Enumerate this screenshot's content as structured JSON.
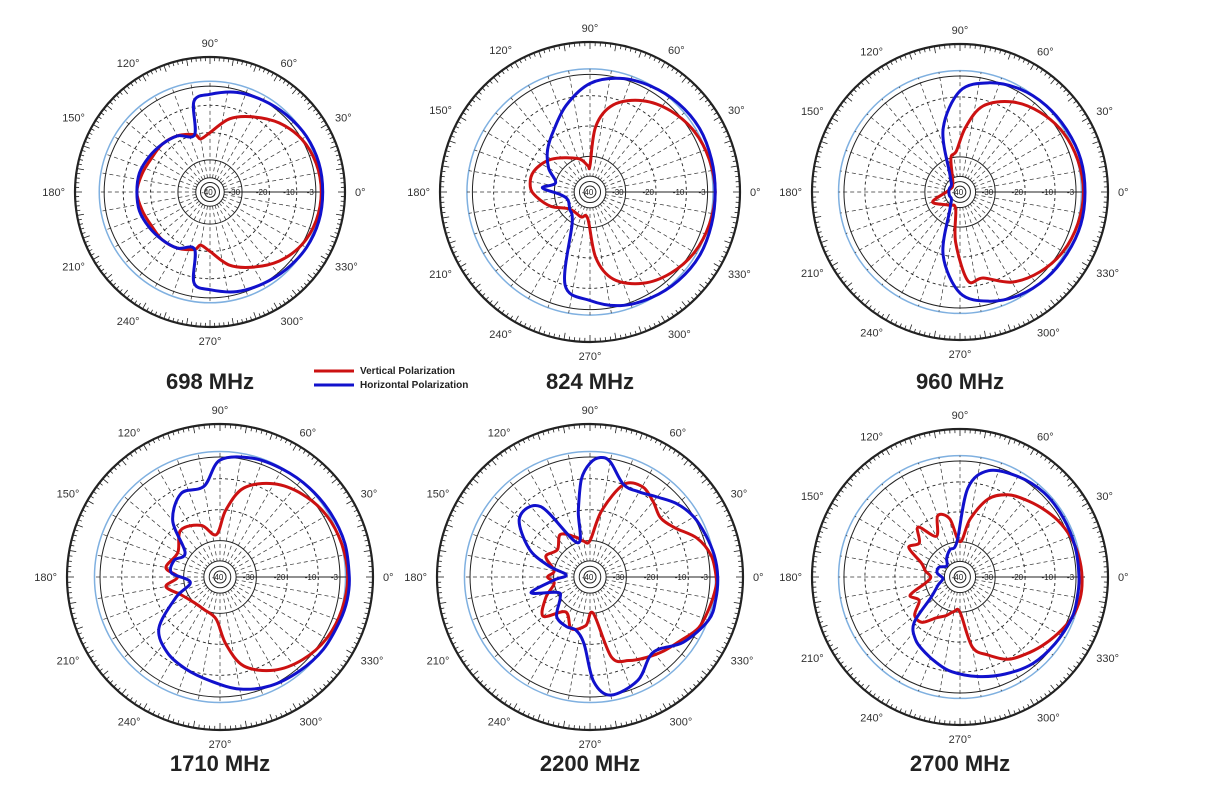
{
  "chart_data": [
    {
      "type": "polar",
      "title": "698 MHz",
      "angle_labels": [
        "0°",
        "30°",
        "60°",
        "90°",
        "120°",
        "150°",
        "180°",
        "210°",
        "240°",
        "270°",
        "300°",
        "330°"
      ],
      "ring_labels": [
        "-3",
        "-10",
        "-20",
        "-30",
        "-40"
      ],
      "rlim": [
        -40,
        0
      ],
      "series": [
        {
          "name": "Vertical Polarization",
          "color": "#cc1111",
          "angles": [
            0,
            15,
            30,
            45,
            60,
            75,
            90,
            100,
            105,
            120,
            135,
            150,
            165,
            180,
            195,
            210,
            225,
            240,
            255,
            260,
            270,
            285,
            300,
            315,
            330,
            345
          ],
          "values": [
            -1,
            -1.5,
            -3,
            -6,
            -10,
            -14,
            -20,
            -22,
            -20,
            -18,
            -17,
            -17,
            -16,
            -15,
            -16,
            -17,
            -17,
            -18,
            -20,
            -22,
            -20,
            -14,
            -10,
            -6,
            -3,
            -1.5
          ]
        },
        {
          "name": "Horizontal Polarization",
          "color": "#1111cc",
          "angles": [
            0,
            15,
            30,
            45,
            60,
            75,
            90,
            100,
            105,
            120,
            135,
            150,
            165,
            180,
            195,
            210,
            225,
            240,
            255,
            260,
            270,
            285,
            300,
            315,
            330,
            345
          ],
          "values": [
            -0.5,
            -0.5,
            -1,
            -2,
            -3,
            -4,
            -6,
            -8,
            -20,
            -18,
            -17,
            -16,
            -15,
            -15,
            -15,
            -16,
            -17,
            -18,
            -20,
            -8,
            -6,
            -4,
            -3,
            -2,
            -1,
            -0.5
          ]
        }
      ]
    },
    {
      "type": "polar",
      "title": "824 MHz",
      "angle_labels": [
        "0°",
        "30°",
        "60°",
        "90°",
        "120°",
        "150°",
        "180°",
        "210°",
        "240°",
        "270°",
        "300°",
        "330°"
      ],
      "ring_labels": [
        "-3",
        "-10",
        "-20",
        "-30",
        "-40"
      ],
      "rlim": [
        -40,
        0
      ],
      "series": [
        {
          "name": "Vertical Polarization",
          "color": "#cc1111",
          "angles": [
            0,
            15,
            30,
            45,
            60,
            75,
            85,
            90,
            95,
            110,
            140,
            160,
            175,
            185,
            200,
            220,
            250,
            265,
            275,
            285,
            300,
            315,
            330,
            345
          ],
          "values": [
            -0.5,
            -1,
            -2,
            -4,
            -7,
            -12,
            -20,
            -33,
            -33,
            -30,
            -25,
            -22,
            -22,
            -24,
            -28,
            -33,
            -33,
            -33,
            -20,
            -12,
            -7,
            -4,
            -2,
            -1
          ]
        },
        {
          "name": "Horizontal Polarization",
          "color": "#1111cc",
          "angles": [
            0,
            15,
            30,
            45,
            60,
            75,
            90,
            105,
            120,
            135,
            150,
            165,
            175,
            185,
            200,
            220,
            240,
            255,
            270,
            285,
            300,
            315,
            330,
            345
          ],
          "values": [
            -0.5,
            -0.3,
            0,
            -0.5,
            -1.5,
            -3,
            -6,
            -12,
            -18,
            -22,
            -26,
            -30,
            -26,
            -32,
            -34,
            -33,
            -30,
            -10,
            -6,
            -3,
            -1.5,
            -0.5,
            0,
            -0.3
          ]
        }
      ]
    },
    {
      "type": "polar",
      "title": "960 MHz",
      "angle_labels": [
        "0°",
        "30°",
        "60°",
        "90°",
        "120°",
        "150°",
        "180°",
        "210°",
        "240°",
        "270°",
        "300°",
        "330°"
      ],
      "ring_labels": [
        "-3",
        "-10",
        "-20",
        "-30",
        "-40"
      ],
      "rlim": [
        -40,
        0
      ],
      "series": [
        {
          "name": "Vertical Polarization",
          "color": "#cc1111",
          "angles": [
            0,
            15,
            30,
            45,
            60,
            75,
            85,
            95,
            105,
            130,
            170,
            200,
            230,
            255,
            265,
            275,
            285,
            300,
            315,
            330,
            345
          ],
          "values": [
            -0.5,
            -1,
            -2,
            -4,
            -7,
            -12,
            -20,
            -28,
            -30,
            -38,
            -38,
            -32,
            -36,
            -36,
            -25,
            -12,
            -12,
            -7,
            -4,
            -2,
            -1
          ]
        },
        {
          "name": "Horizontal Polarization",
          "color": "#1111cc",
          "angles": [
            0,
            15,
            30,
            45,
            60,
            75,
            90,
            105,
            120,
            140,
            160,
            180,
            200,
            220,
            240,
            255,
            270,
            285,
            300,
            315,
            330,
            345
          ],
          "values": [
            0,
            0,
            -0.5,
            -1,
            -2,
            -4,
            -8,
            -20,
            -35,
            -38,
            -38,
            -38,
            -38,
            -38,
            -35,
            -20,
            -8,
            -4,
            -2,
            -1,
            -0.5,
            0
          ]
        }
      ]
    },
    {
      "type": "polar",
      "title": "1710 MHz",
      "angle_labels": [
        "0°",
        "30°",
        "60°",
        "90°",
        "120°",
        "150°",
        "180°",
        "210°",
        "240°",
        "270°",
        "300°",
        "330°"
      ],
      "ring_labels": [
        "-3",
        "-10",
        "-20",
        "-30",
        "-40"
      ],
      "rlim": [
        -40,
        0
      ],
      "series": [
        {
          "name": "Vertical Polarization",
          "color": "#cc1111",
          "angles": [
            0,
            15,
            30,
            45,
            60,
            75,
            85,
            95,
            110,
            130,
            150,
            170,
            180,
            190,
            205,
            225,
            245,
            265,
            275,
            285,
            300,
            315,
            330,
            345
          ],
          "values": [
            -0.5,
            -1,
            -2,
            -4,
            -7,
            -12,
            -20,
            -28,
            -24,
            -22,
            -26,
            -24,
            -28,
            -24,
            -28,
            -30,
            -30,
            -28,
            -20,
            -12,
            -7,
            -4,
            -2,
            -1
          ]
        },
        {
          "name": "Horizontal Polarization",
          "color": "#1111cc",
          "angles": [
            0,
            15,
            30,
            45,
            60,
            75,
            90,
            100,
            115,
            130,
            145,
            160,
            175,
            190,
            205,
            220,
            235,
            250,
            265,
            280,
            295,
            310,
            325,
            340,
            350
          ],
          "values": [
            0,
            0,
            -0.5,
            -1,
            -1.5,
            -2,
            -4,
            -12,
            -12,
            -18,
            -28,
            -26,
            -26,
            -32,
            -26,
            -16,
            -12,
            -10,
            -8,
            -5,
            -3,
            -2,
            -1,
            -0.5,
            0
          ]
        }
      ]
    },
    {
      "type": "polar",
      "title": "2200 MHz",
      "angle_labels": [
        "0°",
        "30°",
        "60°",
        "90°",
        "120°",
        "150°",
        "180°",
        "210°",
        "240°",
        "270°",
        "300°",
        "330°"
      ],
      "ring_labels": [
        "-3",
        "-10",
        "-20",
        "-30",
        "-40"
      ],
      "rlim": [
        -40,
        0
      ],
      "series": [
        {
          "name": "Vertical Polarization",
          "color": "#cc1111",
          "angles": [
            0,
            10,
            20,
            30,
            40,
            50,
            60,
            70,
            80,
            90,
            100,
            110,
            125,
            140,
            155,
            170,
            180,
            190,
            205,
            220,
            235,
            250,
            265,
            275,
            285,
            295,
            305,
            315,
            325,
            335,
            345,
            355
          ],
          "values": [
            -1,
            -2,
            -5,
            -10,
            -12,
            -10,
            -8,
            -10,
            -20,
            -30,
            -30,
            -28,
            -25,
            -28,
            -26,
            -30,
            -28,
            -30,
            -26,
            -22,
            -28,
            -24,
            -26,
            -30,
            -15,
            -12,
            -10,
            -8,
            -6,
            -3,
            -2,
            -1
          ]
        },
        {
          "name": "Horizontal Polarization",
          "color": "#1111cc",
          "angles": [
            0,
            10,
            20,
            30,
            40,
            50,
            60,
            70,
            80,
            85,
            90,
            95,
            100,
            110,
            125,
            140,
            155,
            165,
            175,
            185,
            195,
            205,
            215,
            230,
            245,
            255,
            265,
            272,
            280,
            295,
            310,
            325,
            340,
            350
          ],
          "values": [
            -0.5,
            -1,
            -2,
            -3,
            -5,
            -8,
            -10,
            -10,
            -4,
            -3,
            -5,
            -10,
            -20,
            -30,
            -14,
            -12,
            -20,
            -28,
            -34,
            -30,
            -22,
            -30,
            -30,
            -25,
            -24,
            -24,
            -20,
            -8,
            -3,
            -5,
            -10,
            -5,
            -1,
            -0.5
          ]
        }
      ]
    },
    {
      "type": "polar",
      "title": "2700 MHz",
      "angle_labels": [
        "0°",
        "30°",
        "60°",
        "90°",
        "120°",
        "150°",
        "180°",
        "210°",
        "240°",
        "270°",
        "300°",
        "330°"
      ],
      "ring_labels": [
        "-3",
        "-10",
        "-20",
        "-30",
        "-40"
      ],
      "rlim": [
        -40,
        0
      ],
      "series": [
        {
          "name": "Vertical Polarization",
          "color": "#cc1111",
          "angles": [
            0,
            10,
            20,
            30,
            40,
            50,
            60,
            70,
            80,
            90,
            100,
            110,
            120,
            130,
            140,
            150,
            160,
            170,
            180,
            190,
            200,
            210,
            220,
            230,
            240,
            250,
            260,
            270,
            280,
            290,
            300,
            310,
            320,
            330,
            340,
            350
          ],
          "values": [
            -1,
            -1.5,
            -2.5,
            -4,
            -6,
            -8,
            -10,
            -14,
            -22,
            -30,
            -22,
            -20,
            -26,
            -20,
            -24,
            -22,
            -28,
            -30,
            -32,
            -30,
            -24,
            -26,
            -22,
            -22,
            -26,
            -28,
            -30,
            -30,
            -18,
            -14,
            -10,
            -8,
            -6,
            -4,
            -2,
            -1
          ]
        },
        {
          "name": "Horizontal Polarization",
          "color": "#1111cc",
          "angles": [
            0,
            15,
            30,
            45,
            60,
            75,
            85,
            95,
            110,
            125,
            140,
            155,
            170,
            185,
            200,
            215,
            225,
            235,
            245,
            255,
            265,
            280,
            295,
            310,
            325,
            340,
            350
          ],
          "values": [
            -2,
            -2,
            -2,
            -2,
            -3,
            -5,
            -12,
            -30,
            -32,
            -34,
            -36,
            -34,
            -34,
            -36,
            -34,
            -30,
            -20,
            -16,
            -14,
            -12,
            -10,
            -8,
            -6,
            -4,
            -3,
            -2,
            -2
          ]
        }
      ]
    }
  ],
  "legend": {
    "items": [
      {
        "label": "Vertical Polarization",
        "color": "#cc1111"
      },
      {
        "label": "Horizontal Polarization",
        "color": "#1111cc"
      }
    ]
  }
}
